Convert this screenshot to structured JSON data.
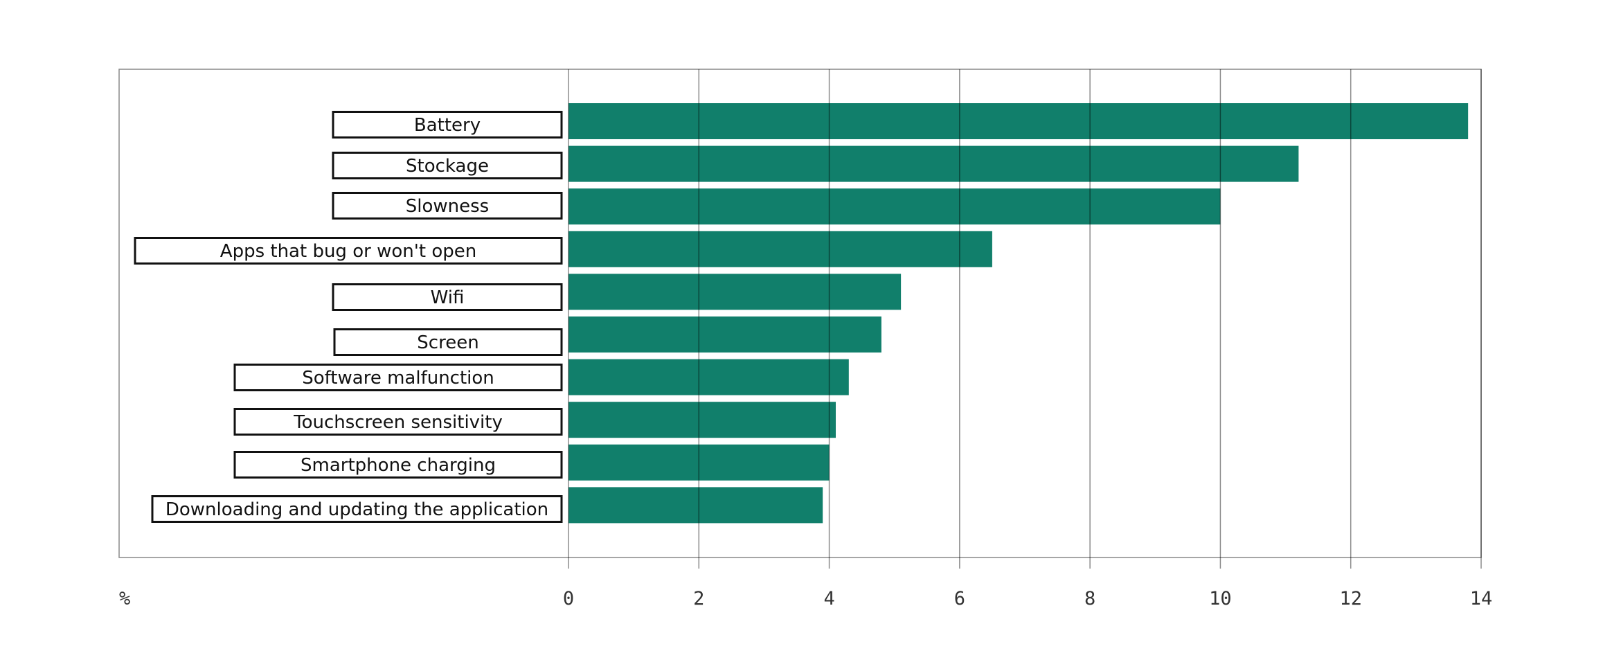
{
  "chart_data": {
    "type": "bar",
    "orientation": "horizontal",
    "title": "",
    "xlabel": "%",
    "ylabel": "",
    "xlim": [
      0,
      14
    ],
    "xticks": [
      0,
      2,
      4,
      6,
      8,
      10,
      12,
      14
    ],
    "grid": true,
    "bar_color": "#117f6b",
    "categories": [
      "Battery",
      "Stockage",
      "Slowness",
      "Apps that bug or won't open",
      "Wifi",
      "Screen",
      "Software malfunction",
      "Touchscreen sensitivity",
      "Smartphone charging",
      "Downloading and updating the application"
    ],
    "values": [
      13.8,
      11.2,
      10.0,
      6.5,
      5.1,
      4.8,
      4.3,
      4.1,
      4.0,
      3.9
    ]
  }
}
